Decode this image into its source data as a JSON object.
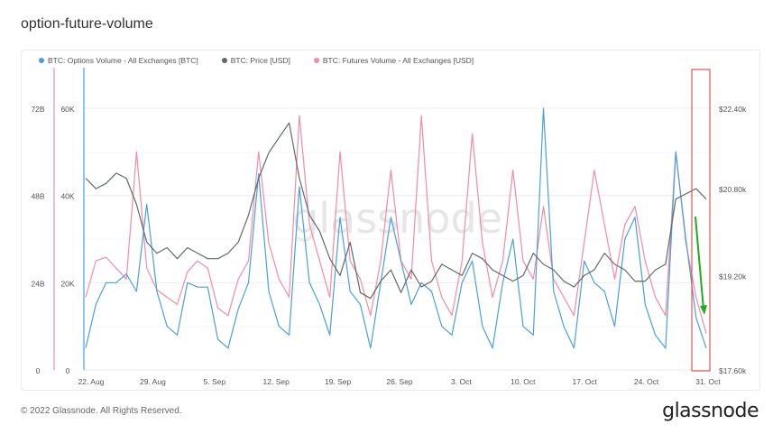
{
  "page": {
    "title": "option-future-volume",
    "copyright": "© 2022 Glassnode. All Rights Reserved.",
    "brand": "glassnode",
    "watermark": "glassnode"
  },
  "colors": {
    "options": "#4a9fe0",
    "price": "#5f6b64",
    "futures": "#f28ba7",
    "annotation_arrow": "#22aa22",
    "highlight_box": "#e05555"
  },
  "chart_data": {
    "type": "line",
    "x_ticks": [
      "22. Aug",
      "29. Aug",
      "5. Sep",
      "12. Sep",
      "19. Sep",
      "26. Sep",
      "3. Oct",
      "10. Oct",
      "17. Oct",
      "24. Oct",
      "31. Oct"
    ],
    "axes": {
      "futures": {
        "ticks": [
          "0",
          "24B",
          "48B",
          "72B"
        ],
        "range": [
          0,
          72
        ]
      },
      "options": {
        "ticks": [
          "0",
          "20K",
          "40K",
          "60K"
        ],
        "range": [
          0,
          60000
        ]
      },
      "price": {
        "ticks": [
          "$17.60k",
          "$19.20k",
          "$20.80k",
          "$22.40k"
        ],
        "range": [
          17600,
          22400
        ],
        "log": true
      }
    },
    "grid": true,
    "legend_position": "top-left",
    "series": [
      {
        "name": "BTC: Options Volume - All Exchanges [BTC]",
        "axis": "options",
        "values": [
          5000,
          15000,
          20000,
          20000,
          22000,
          18000,
          38000,
          18000,
          10000,
          8000,
          20000,
          19000,
          19000,
          7000,
          5000,
          14000,
          20000,
          45000,
          18000,
          10000,
          8000,
          42000,
          20000,
          15000,
          8000,
          35000,
          18000,
          15000,
          5000,
          20000,
          35000,
          25000,
          15000,
          20000,
          18000,
          10000,
          8000,
          20000,
          25000,
          10000,
          5000,
          20000,
          30000,
          10000,
          8000,
          60000,
          18000,
          10000,
          5000,
          25000,
          20000,
          18000,
          10000,
          30000,
          35000,
          15000,
          8000,
          5000,
          50000,
          30000,
          12000,
          5000
        ]
      },
      {
        "name": "BTC: Price [USD]",
        "axis": "price",
        "values": [
          21000,
          20800,
          20900,
          21100,
          21000,
          20500,
          19800,
          19600,
          19700,
          19500,
          19700,
          19600,
          19500,
          19500,
          19600,
          19800,
          20300,
          21000,
          21500,
          21800,
          22100,
          21000,
          20300,
          20000,
          19500,
          19200,
          19800,
          18900,
          18800,
          19100,
          19300,
          18900,
          19300,
          19000,
          19100,
          19400,
          19300,
          19200,
          19600,
          19500,
          19300,
          19200,
          19100,
          19200,
          19600,
          19400,
          19300,
          19100,
          19000,
          19200,
          19300,
          19600,
          19400,
          19300,
          19100,
          19100,
          19300,
          19400,
          20600,
          20700,
          20800,
          20600
        ]
      },
      {
        "name": "BTC: Futures Volume - All Exchanges [USD]",
        "axis": "futures",
        "values": [
          20,
          30,
          31,
          28,
          25,
          60,
          28,
          22,
          20,
          18,
          27,
          30,
          28,
          17,
          15,
          25,
          30,
          60,
          35,
          25,
          20,
          70,
          40,
          30,
          20,
          60,
          30,
          25,
          15,
          30,
          55,
          30,
          25,
          70,
          30,
          20,
          15,
          30,
          65,
          35,
          20,
          30,
          55,
          30,
          25,
          45,
          25,
          20,
          15,
          35,
          55,
          40,
          25,
          40,
          45,
          30,
          20,
          15,
          60,
          35,
          20,
          10
        ]
      }
    ]
  }
}
